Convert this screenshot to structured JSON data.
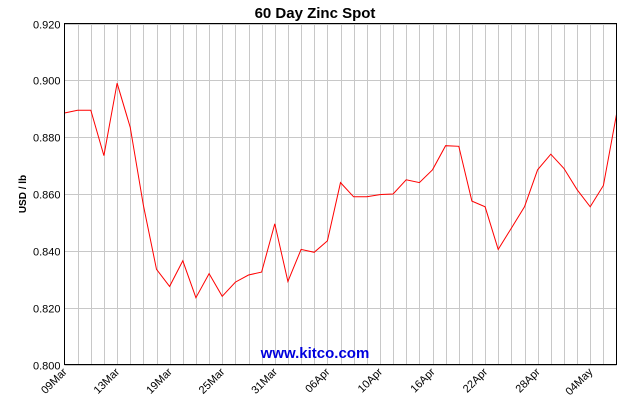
{
  "chart_data": {
    "type": "line",
    "title": "60 Day Zinc Spot",
    "xlabel": "",
    "ylabel": "USD / lb",
    "watermark": "www.kitco.com",
    "ylim": [
      0.8,
      0.92
    ],
    "yticks": [
      "0.800",
      "0.820",
      "0.840",
      "0.860",
      "0.880",
      "0.900",
      "0.920"
    ],
    "xticks": [
      {
        "label": "09Mar",
        "index": 0
      },
      {
        "label": "13Mar",
        "index": 4
      },
      {
        "label": "19Mar",
        "index": 8
      },
      {
        "label": "25Mar",
        "index": 12
      },
      {
        "label": "31Mar",
        "index": 16
      },
      {
        "label": "06Apr",
        "index": 20
      },
      {
        "label": "10Apr",
        "index": 24
      },
      {
        "label": "16Apr",
        "index": 28
      },
      {
        "label": "22Apr",
        "index": 32
      },
      {
        "label": "28Apr",
        "index": 36
      },
      {
        "label": "04May",
        "index": 40
      }
    ],
    "grid": true,
    "color": "#ff0000",
    "series": [
      {
        "values": [
          0.8885,
          0.8895,
          0.8895,
          0.8735,
          0.899,
          0.8835,
          0.856,
          0.8335,
          0.8275,
          0.8365,
          0.8235,
          0.832,
          0.824,
          0.829,
          0.8315,
          0.8325,
          0.8495,
          0.8292,
          0.8405,
          0.8395,
          0.8435,
          0.864,
          0.859,
          0.859,
          0.8598,
          0.86,
          0.865,
          0.864,
          0.8685,
          0.877,
          0.8768,
          0.8575,
          0.8555,
          0.8405,
          0.848,
          0.8555,
          0.8685,
          0.874,
          0.869,
          0.8615,
          0.8555,
          0.863,
          0.888
        ]
      }
    ]
  }
}
